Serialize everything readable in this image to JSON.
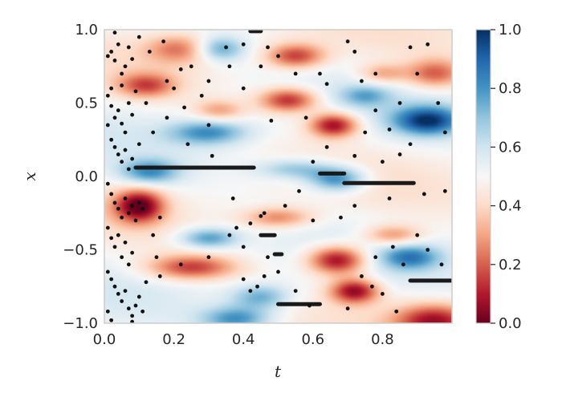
{
  "chart_data": {
    "type": "heatmap",
    "title": "",
    "xlabel": "t",
    "ylabel": "x",
    "xlim": [
      0.0,
      1.0
    ],
    "ylim": [
      -1.0,
      1.0
    ],
    "x_ticks": [
      "0.0",
      "0.2",
      "0.4",
      "0.6",
      "0.8"
    ],
    "x_tick_values": [
      0.0,
      0.2,
      0.4,
      0.6,
      0.8
    ],
    "y_ticks": [
      "1.0",
      "0.5",
      "0.0",
      "−0.5",
      "−1.0"
    ],
    "y_tick_values": [
      1.0,
      0.5,
      0.0,
      -0.5,
      -1.0
    ],
    "colorbar": {
      "min": 0.0,
      "max": 1.0,
      "colormap": "RdBu",
      "ticks": [
        "1.0",
        "0.8",
        "0.6",
        "0.4",
        "0.2",
        "0.0"
      ],
      "tick_values": [
        1.0,
        0.8,
        0.6,
        0.4,
        0.2,
        0.0
      ]
    },
    "grid": false,
    "blobs": [
      {
        "t": 0.1,
        "x": -0.2,
        "v": 0.02,
        "st": 0.05,
        "sx": 0.08
      },
      {
        "t": 0.67,
        "x": -0.57,
        "v": 0.02,
        "st": 0.06,
        "sx": 0.07
      },
      {
        "t": 0.72,
        "x": -0.78,
        "v": 0.05,
        "st": 0.05,
        "sx": 0.06
      },
      {
        "t": 0.66,
        "x": 0.35,
        "v": 0.05,
        "st": 0.05,
        "sx": 0.06
      },
      {
        "t": 0.53,
        "x": 0.52,
        "v": 0.1,
        "st": 0.06,
        "sx": 0.06
      },
      {
        "t": 0.55,
        "x": 0.82,
        "v": 0.15,
        "st": 0.06,
        "sx": 0.06
      },
      {
        "t": 0.95,
        "x": -0.98,
        "v": 0.1,
        "st": 0.08,
        "sx": 0.08
      },
      {
        "t": 0.22,
        "x": 0.87,
        "v": 0.25,
        "st": 0.07,
        "sx": 0.07
      },
      {
        "t": 0.12,
        "x": 0.62,
        "v": 0.2,
        "st": 0.06,
        "sx": 0.06
      },
      {
        "t": 0.25,
        "x": -0.62,
        "v": 0.15,
        "st": 0.09,
        "sx": 0.06
      },
      {
        "t": 0.5,
        "x": -0.28,
        "v": 0.25,
        "st": 0.07,
        "sx": 0.05
      },
      {
        "t": 0.83,
        "x": -0.4,
        "v": 0.25,
        "st": 0.06,
        "sx": 0.05
      },
      {
        "t": 0.95,
        "x": 0.7,
        "v": 0.2,
        "st": 0.06,
        "sx": 0.07
      },
      {
        "t": 0.8,
        "x": 0.7,
        "v": 0.3,
        "st": 0.05,
        "sx": 0.05
      },
      {
        "t": 0.33,
        "x": 0.45,
        "v": 0.3,
        "st": 0.05,
        "sx": 0.05
      },
      {
        "t": 0.93,
        "x": 0.38,
        "v": 0.95,
        "st": 0.07,
        "sx": 0.07
      },
      {
        "t": 0.67,
        "x": -0.02,
        "v": 0.85,
        "st": 0.06,
        "sx": 0.06
      },
      {
        "t": 0.33,
        "x": 0.87,
        "v": 0.8,
        "st": 0.05,
        "sx": 0.06
      },
      {
        "t": 0.3,
        "x": 0.3,
        "v": 0.8,
        "st": 0.08,
        "sx": 0.06
      },
      {
        "t": 0.13,
        "x": 0.03,
        "v": 0.8,
        "st": 0.06,
        "sx": 0.06
      },
      {
        "t": 0.3,
        "x": -0.42,
        "v": 0.8,
        "st": 0.06,
        "sx": 0.05
      },
      {
        "t": 0.38,
        "x": -0.97,
        "v": 0.8,
        "st": 0.07,
        "sx": 0.06
      },
      {
        "t": 0.88,
        "x": -0.55,
        "v": 0.8,
        "st": 0.06,
        "sx": 0.06
      },
      {
        "t": 0.75,
        "x": 0.55,
        "v": 0.7,
        "st": 0.05,
        "sx": 0.05
      },
      {
        "t": 0.45,
        "x": -0.82,
        "v": 0.75,
        "st": 0.06,
        "sx": 0.06
      },
      {
        "t": 0.55,
        "x": 0.05,
        "v": 0.72,
        "st": 0.08,
        "sx": 0.05
      }
    ],
    "segments": [
      {
        "t0": 0.09,
        "t1": 0.43,
        "x": 0.06
      },
      {
        "t0": 0.62,
        "t1": 0.69,
        "x": 0.02
      },
      {
        "t0": 0.69,
        "t1": 0.89,
        "x": -0.045
      },
      {
        "t0": 0.45,
        "t1": 0.49,
        "x": -0.4
      },
      {
        "t0": 0.49,
        "t1": 0.51,
        "x": -0.53
      },
      {
        "t0": 0.5,
        "t1": 0.62,
        "x": -0.87
      },
      {
        "t0": 0.88,
        "t1": 1.0,
        "x": -0.71
      },
      {
        "t0": 0.42,
        "t1": 0.45,
        "x": 0.99
      }
    ],
    "points": [
      [
        0.01,
        0.82
      ],
      [
        0.02,
        0.85
      ],
      [
        0.03,
        0.79
      ],
      [
        0.04,
        0.9
      ],
      [
        0.05,
        0.7
      ],
      [
        0.06,
        0.75
      ],
      [
        0.07,
        0.88
      ],
      [
        0.08,
        0.8
      ],
      [
        0.01,
        0.55
      ],
      [
        0.02,
        0.48
      ],
      [
        0.03,
        0.4
      ],
      [
        0.04,
        0.45
      ],
      [
        0.05,
        0.36
      ],
      [
        0.06,
        0.3
      ],
      [
        0.07,
        0.5
      ],
      [
        0.08,
        0.42
      ],
      [
        0.01,
        0.35
      ],
      [
        0.02,
        0.25
      ],
      [
        0.03,
        0.2
      ],
      [
        0.04,
        0.15
      ],
      [
        0.05,
        0.1
      ],
      [
        0.06,
        0.18
      ],
      [
        0.07,
        0.05
      ],
      [
        0.08,
        0.12
      ],
      [
        0.01,
        -0.05
      ],
      [
        0.02,
        -0.12
      ],
      [
        0.03,
        -0.18
      ],
      [
        0.04,
        -0.22
      ],
      [
        0.05,
        -0.28
      ],
      [
        0.06,
        -0.15
      ],
      [
        0.07,
        -0.25
      ],
      [
        0.08,
        -0.2
      ],
      [
        0.09,
        -0.3
      ],
      [
        0.1,
        -0.18
      ],
      [
        0.11,
        -0.22
      ],
      [
        0.01,
        -0.35
      ],
      [
        0.02,
        -0.42
      ],
      [
        0.03,
        -0.48
      ],
      [
        0.04,
        -0.4
      ],
      [
        0.05,
        -0.55
      ],
      [
        0.06,
        -0.45
      ],
      [
        0.07,
        -0.6
      ],
      [
        0.08,
        -0.52
      ],
      [
        0.01,
        -0.65
      ],
      [
        0.02,
        -0.7
      ],
      [
        0.03,
        -0.75
      ],
      [
        0.04,
        -0.8
      ],
      [
        0.05,
        -0.85
      ],
      [
        0.06,
        -0.78
      ],
      [
        0.07,
        -0.9
      ],
      [
        0.08,
        -0.95
      ],
      [
        0.09,
        -0.88
      ],
      [
        0.1,
        -0.82
      ],
      [
        0.01,
        -0.92
      ],
      [
        0.02,
        -0.98
      ],
      [
        0.13,
        0.85
      ],
      [
        0.17,
        0.92
      ],
      [
        0.18,
        0.65
      ],
      [
        0.2,
        0.6
      ],
      [
        0.22,
        0.73
      ],
      [
        0.25,
        0.75
      ],
      [
        0.3,
        0.65
      ],
      [
        0.35,
        0.88
      ],
      [
        0.36,
        0.75
      ],
      [
        0.4,
        0.9
      ],
      [
        0.28,
        0.55
      ],
      [
        0.23,
        0.47
      ],
      [
        0.18,
        0.4
      ],
      [
        0.24,
        0.22
      ],
      [
        0.3,
        0.35
      ],
      [
        0.47,
        0.88
      ],
      [
        0.5,
        0.82
      ],
      [
        0.55,
        0.7
      ],
      [
        0.45,
        0.75
      ],
      [
        0.4,
        0.6
      ],
      [
        0.48,
        0.38
      ],
      [
        0.58,
        0.4
      ],
      [
        0.62,
        0.7
      ],
      [
        0.64,
        0.63
      ],
      [
        0.7,
        0.92
      ],
      [
        0.72,
        0.85
      ],
      [
        0.74,
        0.65
      ],
      [
        0.78,
        0.7
      ],
      [
        0.78,
        0.45
      ],
      [
        0.75,
        0.3
      ],
      [
        0.82,
        0.32
      ],
      [
        0.85,
        0.5
      ],
      [
        0.88,
        0.88
      ],
      [
        0.9,
        0.7
      ],
      [
        0.93,
        0.9
      ],
      [
        0.96,
        0.5
      ],
      [
        0.98,
        0.3
      ],
      [
        0.88,
        0.22
      ],
      [
        0.85,
        0.15
      ],
      [
        0.8,
        0.1
      ],
      [
        0.72,
        0.14
      ],
      [
        0.64,
        0.2
      ],
      [
        0.6,
        0.1
      ],
      [
        0.56,
        -0.1
      ],
      [
        0.52,
        -0.2
      ],
      [
        0.45,
        -0.27
      ],
      [
        0.42,
        -0.32
      ],
      [
        0.46,
        -0.25
      ],
      [
        0.38,
        -0.35
      ],
      [
        0.36,
        -0.4
      ],
      [
        0.4,
        -0.48
      ],
      [
        0.3,
        -0.55
      ],
      [
        0.22,
        -0.6
      ],
      [
        0.15,
        -0.55
      ],
      [
        0.12,
        -0.72
      ],
      [
        0.16,
        -0.68
      ],
      [
        0.4,
        -0.7
      ],
      [
        0.42,
        -0.78
      ],
      [
        0.44,
        -0.75
      ],
      [
        0.6,
        -0.3
      ],
      [
        0.68,
        -0.28
      ],
      [
        0.72,
        -0.2
      ],
      [
        0.82,
        -0.15
      ],
      [
        0.92,
        -0.12
      ],
      [
        0.98,
        -0.1
      ],
      [
        0.9,
        -0.4
      ],
      [
        0.93,
        -0.5
      ],
      [
        0.97,
        -0.6
      ],
      [
        0.86,
        -0.6
      ],
      [
        0.83,
        -0.48
      ],
      [
        0.78,
        -0.55
      ],
      [
        0.74,
        -0.68
      ],
      [
        0.77,
        -0.75
      ],
      [
        0.8,
        -0.8
      ],
      [
        0.84,
        -0.92
      ],
      [
        0.7,
        -0.9
      ],
      [
        0.59,
        -0.88
      ],
      [
        0.55,
        -0.78
      ],
      [
        0.5,
        -0.65
      ],
      [
        0.47,
        -0.55
      ],
      [
        0.46,
        -0.68
      ],
      [
        0.11,
        -0.92
      ],
      [
        0.08,
        -0.99
      ],
      [
        0.14,
        -0.4
      ],
      [
        0.16,
        -0.28
      ],
      [
        0.1,
        0.95
      ],
      [
        0.03,
        0.98
      ],
      [
        0.12,
        0.5
      ],
      [
        0.14,
        0.3
      ],
      [
        0.02,
        0.6
      ],
      [
        0.05,
        0.62
      ],
      [
        0.09,
        0.58
      ],
      [
        0.37,
        -0.15
      ],
      [
        0.31,
        0.14
      ],
      [
        0.1,
        0.22
      ]
    ]
  }
}
